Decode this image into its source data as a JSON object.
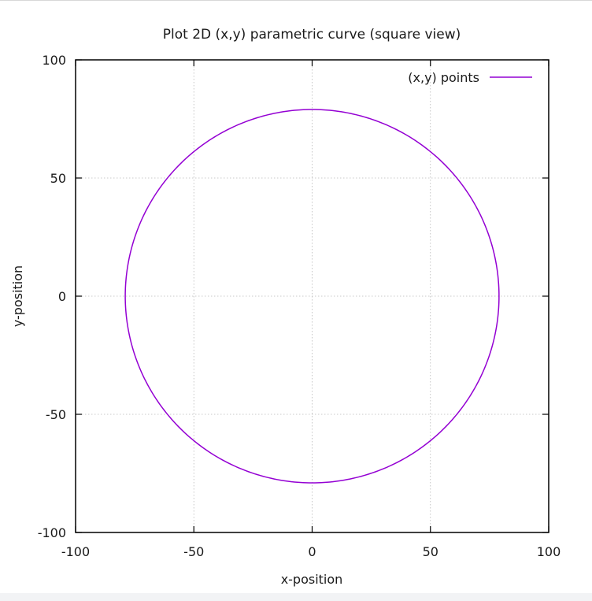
{
  "chart_data": {
    "type": "line",
    "title": "Plot 2D (x,y) parametric curve (square view)",
    "xlabel": "x-position",
    "ylabel": "y-position",
    "xlim": [
      -100,
      100
    ],
    "ylim": [
      -100,
      100
    ],
    "xticks": [
      -100,
      -50,
      0,
      50,
      100
    ],
    "yticks": [
      -100,
      -50,
      0,
      50,
      100
    ],
    "xtick_labels": [
      "-100",
      "-50",
      "0",
      "50",
      "100"
    ],
    "ytick_labels": [
      "-100",
      "-50",
      "0",
      "50",
      "100"
    ],
    "grid": true,
    "legend_position": "top-right",
    "series": [
      {
        "name": "(x,y) points",
        "color": "#9400d3",
        "shape": "circle",
        "center": [
          0,
          0
        ],
        "radius": 79
      }
    ]
  }
}
